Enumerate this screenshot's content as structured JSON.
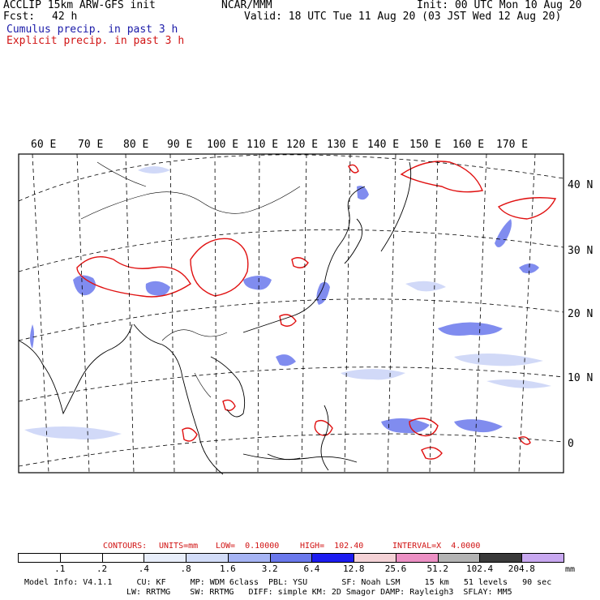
{
  "header": {
    "title": "ACCLIP 15km ARW-GFS init",
    "center": "NCAR/MMM",
    "init": "Init: 00 UTC Mon 10 Aug 20",
    "fcst_label": "Fcst:",
    "fcst_value": "42 h",
    "valid": "Valid: 18 UTC Tue 11 Aug 20 (03 JST Wed 12 Aug 20)"
  },
  "fields": {
    "cumulus": "Cumulus precip. in past 3 h",
    "explicit": "Explicit precip. in past 3 h"
  },
  "map": {
    "lon_labels": [
      "60 E",
      "70 E",
      "80 E",
      "90 E",
      "100 E",
      "110 E",
      "120 E",
      "130 E",
      "140 E",
      "150 E",
      "160 E",
      "170 E"
    ],
    "lat_labels": [
      "40 N",
      "30 N",
      "20 N",
      "10 N",
      "0"
    ]
  },
  "contours": {
    "label": "CONTOURS:",
    "units": "UNITS=mm",
    "low": "LOW=  0.10000",
    "high": "HIGH=  102.40",
    "interval": "INTERVAL=X  4.0000"
  },
  "colorbar": {
    "labels": [
      ".1",
      ".2",
      ".4",
      ".8",
      "1.6",
      "3.2",
      "6.4",
      "12.8",
      "25.6",
      "51.2",
      "102.4",
      "204.8"
    ],
    "unit": "mm",
    "colors": [
      "#ffffff",
      "#ffffff",
      "#ffffff",
      "#e8eefa",
      "#d2dcf8",
      "#a6b4f4",
      "#6a78ec",
      "#1c1cf0",
      "#f4d2d6",
      "#ec90c4",
      "#b4b4b4",
      "#3a3a3a",
      "#c8a8f0"
    ]
  },
  "model_info": {
    "line1": "Model Info: V4.1.1     CU: KF     MP: WDM 6class  PBL: YSU       SF: Noah LSM     15 km   51 levels   90 sec",
    "line2": "LW: RRTMG    SW: RRTMG   DIFF: simple KM: 2D Smagor DAMP: Rayleigh3  SFLAY: MM5"
  }
}
